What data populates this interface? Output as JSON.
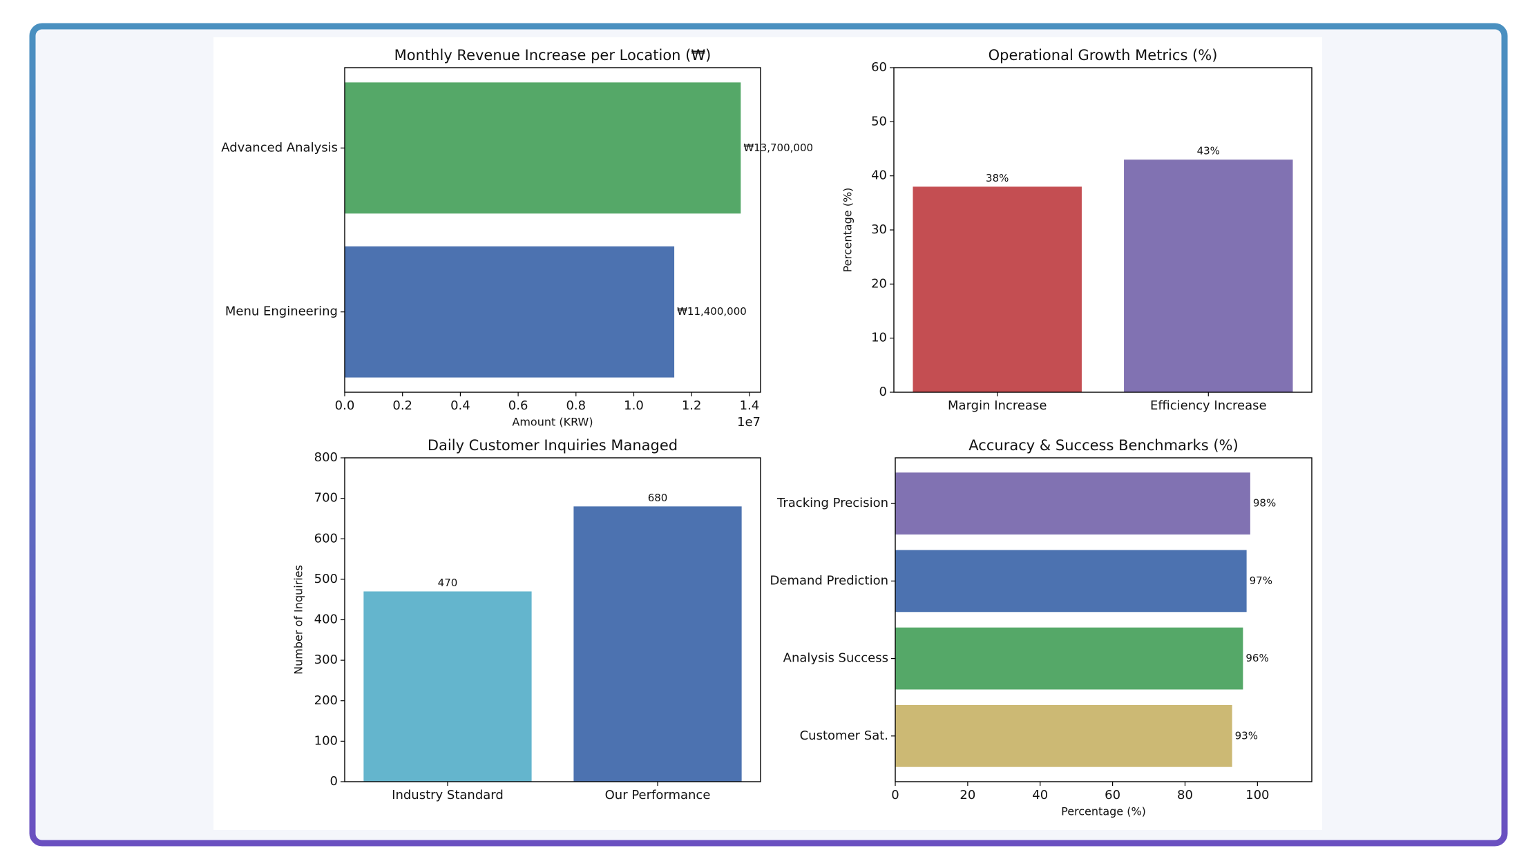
{
  "chart_data": [
    {
      "type": "barh",
      "title": "Monthly Revenue Increase per Location (₩)",
      "xlabel": "Amount (KRW)",
      "x_offset_label": "1e7",
      "categories": [
        "Menu Engineering",
        "Advanced Analysis"
      ],
      "values": [
        11400000,
        13700000
      ],
      "value_labels": [
        "₩11,400,000",
        "₩13,700,000"
      ],
      "colors": [
        "#4c72b0",
        "#55a868"
      ],
      "xlim": [
        0,
        14385000
      ],
      "xticks": [
        {
          "value": 0,
          "label": "0.0"
        },
        {
          "value": 2000000,
          "label": "0.2"
        },
        {
          "value": 4000000,
          "label": "0.4"
        },
        {
          "value": 6000000,
          "label": "0.6"
        },
        {
          "value": 8000000,
          "label": "0.8"
        },
        {
          "value": 10000000,
          "label": "1.0"
        },
        {
          "value": 12000000,
          "label": "1.2"
        },
        {
          "value": 14000000,
          "label": "1.4"
        }
      ]
    },
    {
      "type": "bar",
      "title": "Operational Growth Metrics (%)",
      "ylabel": "Percentage (%)",
      "categories": [
        "Margin Increase",
        "Efficiency Increase"
      ],
      "values": [
        38,
        43
      ],
      "value_labels": [
        "38%",
        "43%"
      ],
      "colors": [
        "#c44e52",
        "#8172b2"
      ],
      "ylim": [
        0,
        60
      ],
      "yticks": [
        0,
        10,
        20,
        30,
        40,
        50,
        60
      ]
    },
    {
      "type": "bar",
      "title": "Daily Customer Inquiries Managed",
      "ylabel": "Number of Inquiries",
      "categories": [
        "Industry Standard",
        "Our Performance"
      ],
      "values": [
        470,
        680
      ],
      "colors": [
        "#64b5cd",
        "#4c72b0"
      ],
      "ylim": [
        0,
        800
      ],
      "yticks": [
        0,
        100,
        200,
        300,
        400,
        500,
        600,
        700,
        800
      ]
    },
    {
      "type": "barh",
      "title": "Accuracy & Success Benchmarks (%)",
      "xlabel": "Percentage (%)",
      "categories": [
        "Customer Sat.",
        "Analysis Success",
        "Demand Prediction",
        "Tracking Precision"
      ],
      "values": [
        93,
        96,
        97,
        98
      ],
      "value_labels": [
        "93%",
        "96%",
        "97%",
        "98%"
      ],
      "colors": [
        "#ccb974",
        "#55a868",
        "#4c72b0",
        "#8172b2"
      ],
      "xlim": [
        0,
        115
      ],
      "xticks": [
        0,
        20,
        40,
        60,
        80,
        100
      ]
    }
  ]
}
